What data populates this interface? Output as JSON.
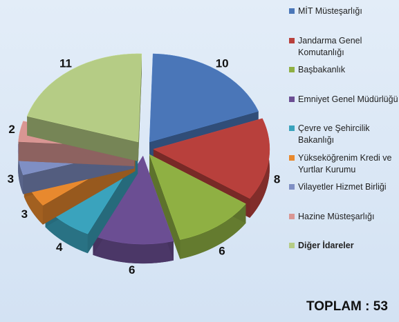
{
  "chart_data": {
    "type": "pie",
    "categories": [
      "MİT Müsteşarlığı",
      "Jandarma Genel Komutanlığı",
      "Başbakanlık",
      "Emniyet Genel Müdürlüğü",
      "Çevre ve Şehircilik Bakanlığı",
      "Yükseköğrenim Kredi ve Yurtlar Kurumu",
      "Vilayetler Hizmet Birliği",
      "Hazine Müsteşarlığı",
      "Diğer İdareler"
    ],
    "values": [
      10,
      8,
      6,
      6,
      4,
      3,
      3,
      2,
      11
    ],
    "colors": [
      "#4a76b8",
      "#b8403c",
      "#8fb043",
      "#6b4e93",
      "#3aa3bd",
      "#e8892e",
      "#7f8fc4",
      "#d99693",
      "#b5cc85"
    ],
    "total_label": "TOPLAM : 53"
  }
}
